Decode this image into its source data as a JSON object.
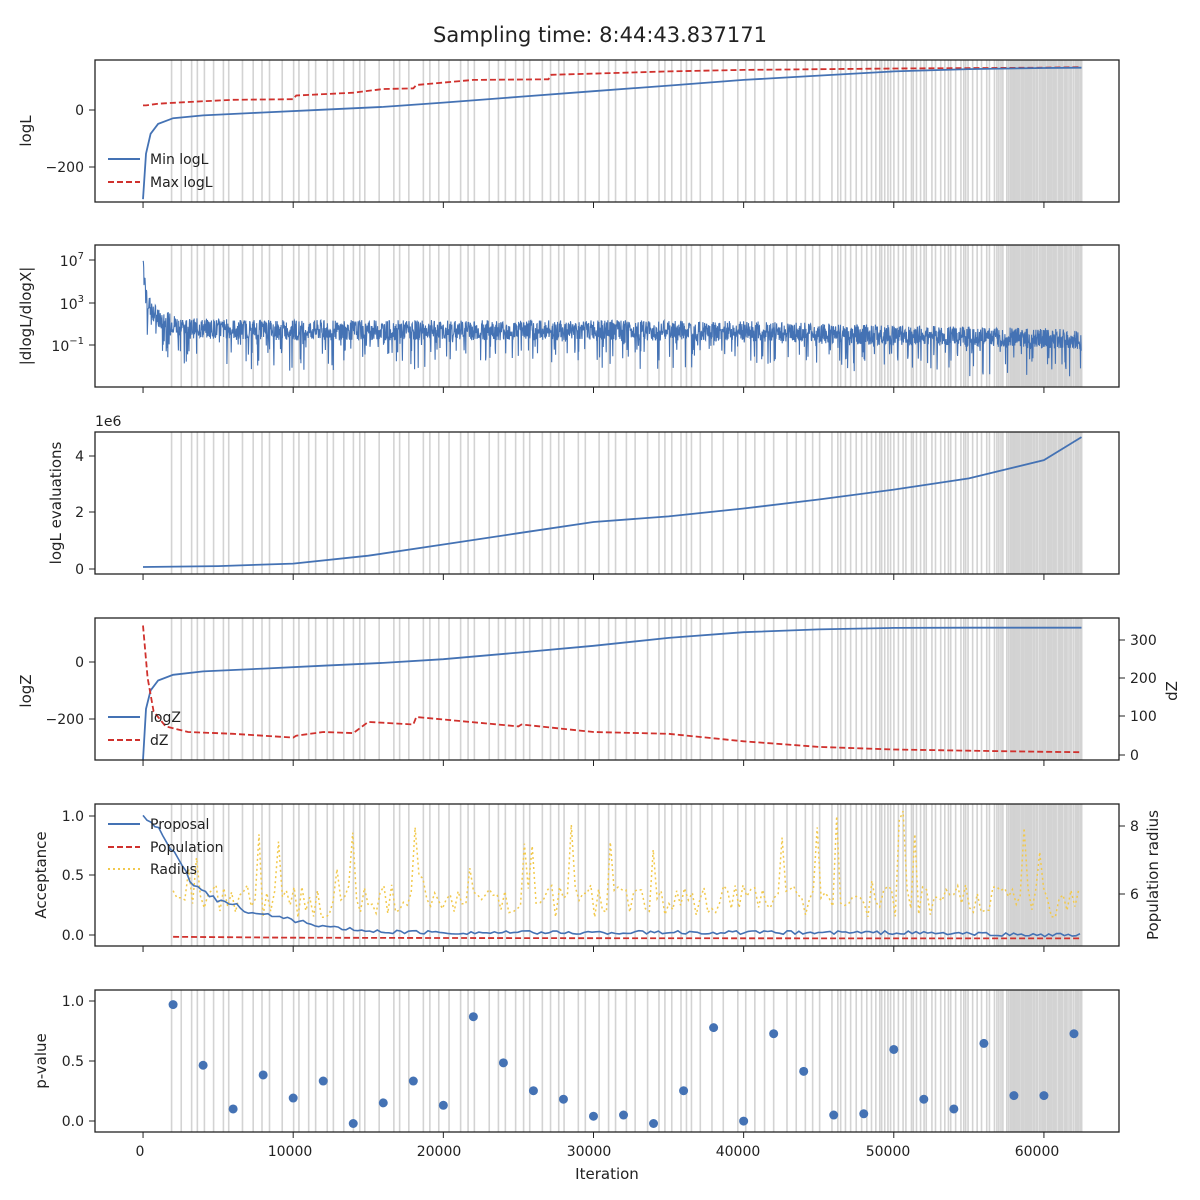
{
  "title": "Sampling time: 8:44:43.837171",
  "x_label": "Iteration",
  "x_ticks": [
    "0",
    "10000",
    "20000",
    "30000",
    "40000",
    "50000",
    "60000"
  ],
  "colors": {
    "blue": "#4472b4",
    "red": "#d0312d",
    "yellow": "#f2c94c",
    "band": "#d3d3d3"
  },
  "chart_data": [
    {
      "id": "logL",
      "type": "line",
      "ylabel": "logL",
      "yticks": [
        "0",
        "−200"
      ],
      "x_range": [
        -3200,
        65000
      ],
      "ylim": [
        -320,
        180
      ],
      "series": [
        {
          "name": "Min logL",
          "style": "solid",
          "x": [
            0,
            200,
            500,
            1000,
            2000,
            4000,
            8000,
            12000,
            16000,
            20000,
            25000,
            30000,
            35000,
            40000,
            45000,
            50000,
            55000,
            60000,
            62500
          ],
          "y": [
            -310,
            -150,
            -80,
            -45,
            -25,
            -15,
            -5,
            5,
            15,
            30,
            50,
            70,
            90,
            110,
            125,
            140,
            148,
            152,
            153
          ]
        },
        {
          "name": "Max logL",
          "style": "dashed",
          "x": [
            0,
            200,
            1000,
            3000,
            6000,
            10000,
            10200,
            14000,
            16000,
            18000,
            18200,
            22000,
            27000,
            27200,
            30000,
            35000,
            40000,
            50000,
            60000,
            62500
          ],
          "y": [
            20,
            20,
            26,
            32,
            40,
            42,
            55,
            65,
            78,
            80,
            92,
            110,
            112,
            128,
            132,
            140,
            145,
            150,
            153,
            155
          ]
        }
      ]
    },
    {
      "id": "dlogL",
      "type": "line",
      "ylabel": "|dlogL/dlogX|",
      "yscale": "log",
      "yticks": [
        {
          "base": "10",
          "exp": "7"
        },
        {
          "base": "10",
          "exp": "3"
        },
        {
          "base": "10",
          "exp": "−1"
        }
      ],
      "x_range": [
        -3200,
        65000
      ],
      "ylim_log10": [
        -4.5,
        9.5
      ],
      "series": [
        {
          "name": "",
          "style": "solid",
          "x": [
            0,
            300,
            1000,
            3000,
            10000,
            20000,
            30000,
            40000,
            50000,
            60000,
            62500
          ],
          "center_log10": [
            7.2,
            4.0,
            2.3,
            1.4,
            1.2,
            1.2,
            1.2,
            1.1,
            0.7,
            0.4,
            0.3
          ]
        }
      ]
    },
    {
      "id": "evals",
      "type": "line",
      "ylabel": "logL evaluations",
      "yticks": [
        "0",
        "2",
        "4"
      ],
      "offset_label": "1e6",
      "x_range": [
        -3200,
        65000
      ],
      "ylim": [
        -0.25,
        4.8
      ],
      "series": [
        {
          "name": "",
          "style": "solid",
          "x": [
            0,
            5000,
            10000,
            15000,
            20000,
            25000,
            30000,
            35000,
            40000,
            45000,
            50000,
            55000,
            60000,
            62500
          ],
          "y": [
            0.0,
            0.03,
            0.12,
            0.4,
            0.8,
            1.2,
            1.6,
            1.8,
            2.08,
            2.4,
            2.75,
            3.15,
            3.8,
            4.62
          ]
        }
      ]
    },
    {
      "id": "logZ",
      "type": "line",
      "ylabel": "logZ",
      "ylabel_right": "dZ",
      "yticks": [
        "0",
        "−200"
      ],
      "yticks_right": [
        "0",
        "100",
        "200",
        "300"
      ],
      "x_range": [
        -3200,
        65000
      ],
      "ylim": [
        -330,
        170
      ],
      "ylim_right": [
        -20,
        360
      ],
      "series": [
        {
          "name": "logZ",
          "style": "solid",
          "axis": "left",
          "x": [
            0,
            200,
            500,
            1000,
            2000,
            4000,
            8000,
            12000,
            16000,
            20000,
            25000,
            30000,
            35000,
            40000,
            45000,
            50000,
            55000,
            60000,
            62500
          ],
          "y": [
            -330,
            -150,
            -85,
            -50,
            -30,
            -18,
            -8,
            2,
            12,
            25,
            48,
            72,
            100,
            120,
            130,
            135,
            136,
            136,
            136
          ]
        },
        {
          "name": "dZ",
          "style": "dashed",
          "axis": "right",
          "x": [
            0,
            300,
            700,
            1500,
            3000,
            6000,
            10000,
            10200,
            12000,
            14000,
            14200,
            15000,
            18000,
            18200,
            25000,
            25200,
            30000,
            35000,
            40000,
            45000,
            50000,
            55000,
            60000,
            62500
          ],
          "y": [
            340,
            200,
            110,
            70,
            55,
            50,
            40,
            45,
            55,
            52,
            58,
            82,
            75,
            95,
            70,
            75,
            55,
            50,
            30,
            15,
            8,
            5,
            2,
            1
          ]
        }
      ]
    },
    {
      "id": "acceptance",
      "type": "line",
      "ylabel": "Acceptance",
      "ylabel_right": "Population radius",
      "yticks": [
        "0.0",
        "0.5",
        "1.0"
      ],
      "yticks_right": [
        "6",
        "8"
      ],
      "x_range": [
        -3200,
        65000
      ],
      "ylim": [
        -0.06,
        1.1
      ],
      "ylim_right": [
        4.8,
        8.7
      ],
      "series": [
        {
          "name": "Proposal",
          "style": "solid",
          "axis": "left",
          "x": [
            0,
            1000,
            2000,
            3000,
            4000,
            6000,
            8000,
            10000,
            12000,
            15000,
            20000,
            30000,
            40000,
            50000,
            60000,
            62500
          ],
          "y": [
            1.0,
            0.93,
            0.7,
            0.5,
            0.38,
            0.27,
            0.2,
            0.15,
            0.1,
            0.06,
            0.05,
            0.05,
            0.05,
            0.05,
            0.03,
            0.03
          ]
        },
        {
          "name": "Population",
          "style": "dashed",
          "axis": "left",
          "x": [
            2000,
            10000,
            20000,
            30000,
            40000,
            50000,
            62500
          ],
          "y": [
            0.015,
            0.008,
            0.005,
            0.004,
            0.003,
            0.002,
            0.002
          ]
        },
        {
          "name": "Radius",
          "style": "dotted",
          "axis": "right",
          "x": [
            2000,
            62500
          ],
          "base": 5.9
        }
      ]
    },
    {
      "id": "pvalue",
      "type": "scatter",
      "ylabel": "p-value",
      "yticks": [
        "0.0",
        "0.5",
        "1.0"
      ],
      "x_range": [
        -3200,
        65000
      ],
      "ylim": [
        -0.07,
        1.1
      ],
      "series": [
        {
          "name": "",
          "x": [
            2000,
            4000,
            6000,
            8000,
            10000,
            12000,
            14000,
            16000,
            18000,
            20000,
            22000,
            24000,
            26000,
            28000,
            30000,
            32000,
            34000,
            36000,
            38000,
            40000,
            42000,
            44000,
            46000,
            48000,
            50000,
            52000,
            54000,
            56000,
            58000,
            60000,
            62000
          ],
          "y": [
            0.98,
            0.48,
            0.12,
            0.4,
            0.21,
            0.35,
            0.0,
            0.17,
            0.35,
            0.15,
            0.88,
            0.5,
            0.27,
            0.2,
            0.06,
            0.07,
            0.0,
            0.27,
            0.79,
            0.02,
            0.74,
            0.43,
            0.07,
            0.08,
            0.61,
            0.2,
            0.12,
            0.66,
            0.23,
            0.23,
            0.74
          ]
        }
      ]
    }
  ]
}
